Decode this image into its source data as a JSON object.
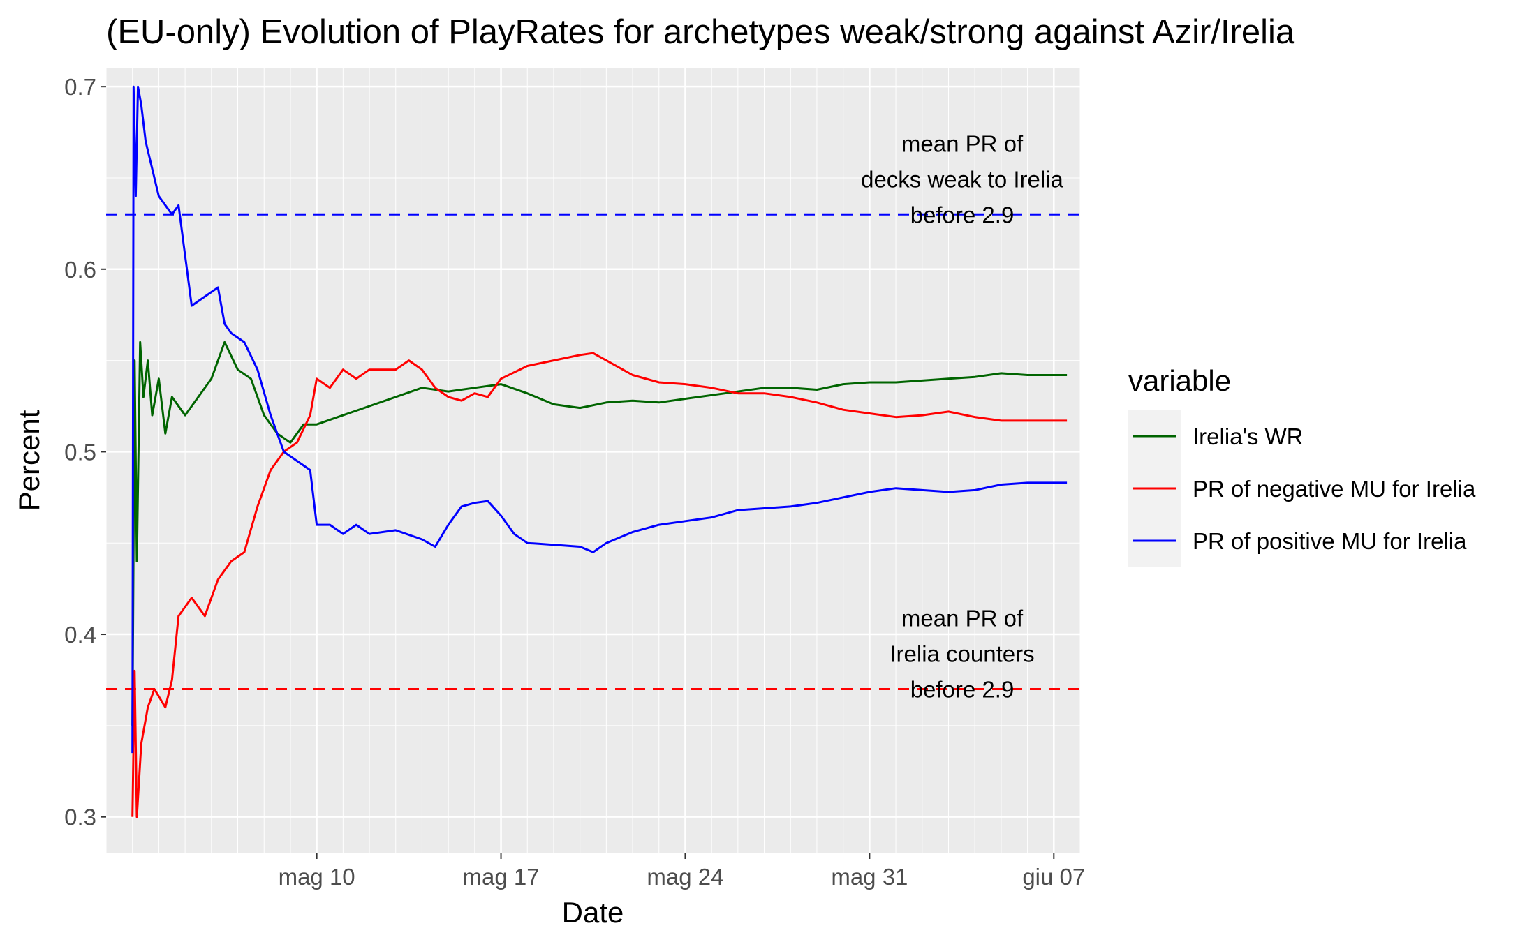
{
  "chart_data": {
    "type": "line",
    "title": "(EU-only) Evolution of PlayRates for archetypes weak/strong against Azir/Irelia",
    "xlabel": "Date",
    "ylabel": "Percent",
    "x_type": "date",
    "xlim": [
      "2021-05-02",
      "2021-06-08"
    ],
    "ylim": [
      0.28,
      0.71
    ],
    "x_ticks": [
      {
        "date": "2021-05-10",
        "label": "mag 10"
      },
      {
        "date": "2021-05-17",
        "label": "mag 17"
      },
      {
        "date": "2021-05-24",
        "label": "mag 24"
      },
      {
        "date": "2021-05-31",
        "label": "mag 31"
      },
      {
        "date": "2021-06-07",
        "label": "giu 07"
      }
    ],
    "y_ticks": [
      {
        "value": 0.3,
        "label": "0.3"
      },
      {
        "value": 0.4,
        "label": "0.4"
      },
      {
        "value": 0.5,
        "label": "0.5"
      },
      {
        "value": 0.6,
        "label": "0.6"
      },
      {
        "value": 0.7,
        "label": "0.7"
      }
    ],
    "grid": true,
    "background": "#ebebeb",
    "legend": {
      "title": "variable",
      "position": "right"
    },
    "series": [
      {
        "name": "Irelia's WR",
        "color": "#006400",
        "points": [
          [
            "2021-05-03T00:00",
            0.35
          ],
          [
            "2021-05-03T02:00",
            0.55
          ],
          [
            "2021-05-03T04:00",
            0.44
          ],
          [
            "2021-05-03T07:00",
            0.56
          ],
          [
            "2021-05-03T10:00",
            0.53
          ],
          [
            "2021-05-03T14:00",
            0.55
          ],
          [
            "2021-05-03T18:00",
            0.52
          ],
          [
            "2021-05-04T00:00",
            0.54
          ],
          [
            "2021-05-04T06:00",
            0.51
          ],
          [
            "2021-05-04T12:00",
            0.53
          ],
          [
            "2021-05-05T00:00",
            0.52
          ],
          [
            "2021-05-05T12:00",
            0.53
          ],
          [
            "2021-05-06T00:00",
            0.54
          ],
          [
            "2021-05-06T12:00",
            0.56
          ],
          [
            "2021-05-07T00:00",
            0.545
          ],
          [
            "2021-05-07T12:00",
            0.54
          ],
          [
            "2021-05-08T00:00",
            0.52
          ],
          [
            "2021-05-08T12:00",
            0.51
          ],
          [
            "2021-05-09T00:00",
            0.505
          ],
          [
            "2021-05-09T12:00",
            0.515
          ],
          [
            "2021-05-10T00:00",
            0.515
          ],
          [
            "2021-05-11T00:00",
            0.52
          ],
          [
            "2021-05-12T00:00",
            0.525
          ],
          [
            "2021-05-13T00:00",
            0.53
          ],
          [
            "2021-05-14T00:00",
            0.535
          ],
          [
            "2021-05-15T00:00",
            0.533
          ],
          [
            "2021-05-16T00:00",
            0.535
          ],
          [
            "2021-05-17T00:00",
            0.537
          ],
          [
            "2021-05-18T00:00",
            0.532
          ],
          [
            "2021-05-19T00:00",
            0.526
          ],
          [
            "2021-05-20T00:00",
            0.524
          ],
          [
            "2021-05-21T00:00",
            0.527
          ],
          [
            "2021-05-22T00:00",
            0.528
          ],
          [
            "2021-05-23T00:00",
            0.527
          ],
          [
            "2021-05-24T00:00",
            0.529
          ],
          [
            "2021-05-25T00:00",
            0.531
          ],
          [
            "2021-05-26T00:00",
            0.533
          ],
          [
            "2021-05-27T00:00",
            0.535
          ],
          [
            "2021-05-28T00:00",
            0.535
          ],
          [
            "2021-05-29T00:00",
            0.534
          ],
          [
            "2021-05-30T00:00",
            0.537
          ],
          [
            "2021-05-31T00:00",
            0.538
          ],
          [
            "2021-06-01T00:00",
            0.538
          ],
          [
            "2021-06-02T00:00",
            0.539
          ],
          [
            "2021-06-03T00:00",
            0.54
          ],
          [
            "2021-06-04T00:00",
            0.541
          ],
          [
            "2021-06-05T00:00",
            0.543
          ],
          [
            "2021-06-06T00:00",
            0.542
          ],
          [
            "2021-06-07T00:00",
            0.542
          ],
          [
            "2021-06-07T12:00",
            0.542
          ]
        ]
      },
      {
        "name": "PR of negative MU for Irelia",
        "color": "#ff0000",
        "points": [
          [
            "2021-05-03T00:00",
            0.3
          ],
          [
            "2021-05-03T02:00",
            0.38
          ],
          [
            "2021-05-03T04:00",
            0.3
          ],
          [
            "2021-05-03T08:00",
            0.34
          ],
          [
            "2021-05-03T14:00",
            0.36
          ],
          [
            "2021-05-03T20:00",
            0.37
          ],
          [
            "2021-05-04T06:00",
            0.36
          ],
          [
            "2021-05-04T12:00",
            0.375
          ],
          [
            "2021-05-04T18:00",
            0.41
          ],
          [
            "2021-05-05T06:00",
            0.42
          ],
          [
            "2021-05-05T18:00",
            0.41
          ],
          [
            "2021-05-06T06:00",
            0.43
          ],
          [
            "2021-05-06T18:00",
            0.44
          ],
          [
            "2021-05-07T06:00",
            0.445
          ],
          [
            "2021-05-07T18:00",
            0.47
          ],
          [
            "2021-05-08T06:00",
            0.49
          ],
          [
            "2021-05-08T18:00",
            0.5
          ],
          [
            "2021-05-09T06:00",
            0.505
          ],
          [
            "2021-05-09T18:00",
            0.52
          ],
          [
            "2021-05-10T00:00",
            0.54
          ],
          [
            "2021-05-10T12:00",
            0.535
          ],
          [
            "2021-05-11T00:00",
            0.545
          ],
          [
            "2021-05-11T12:00",
            0.54
          ],
          [
            "2021-05-12T00:00",
            0.545
          ],
          [
            "2021-05-13T00:00",
            0.545
          ],
          [
            "2021-05-13T12:00",
            0.55
          ],
          [
            "2021-05-14T00:00",
            0.545
          ],
          [
            "2021-05-14T12:00",
            0.535
          ],
          [
            "2021-05-15T00:00",
            0.53
          ],
          [
            "2021-05-15T12:00",
            0.528
          ],
          [
            "2021-05-16T00:00",
            0.532
          ],
          [
            "2021-05-16T12:00",
            0.53
          ],
          [
            "2021-05-17T00:00",
            0.54
          ],
          [
            "2021-05-18T00:00",
            0.547
          ],
          [
            "2021-05-19T00:00",
            0.55
          ],
          [
            "2021-05-20T00:00",
            0.553
          ],
          [
            "2021-05-20T12:00",
            0.554
          ],
          [
            "2021-05-21T00:00",
            0.55
          ],
          [
            "2021-05-22T00:00",
            0.542
          ],
          [
            "2021-05-23T00:00",
            0.538
          ],
          [
            "2021-05-24T00:00",
            0.537
          ],
          [
            "2021-05-25T00:00",
            0.535
          ],
          [
            "2021-05-26T00:00",
            0.532
          ],
          [
            "2021-05-27T00:00",
            0.532
          ],
          [
            "2021-05-28T00:00",
            0.53
          ],
          [
            "2021-05-29T00:00",
            0.527
          ],
          [
            "2021-05-30T00:00",
            0.523
          ],
          [
            "2021-05-31T00:00",
            0.521
          ],
          [
            "2021-06-01T00:00",
            0.519
          ],
          [
            "2021-06-02T00:00",
            0.52
          ],
          [
            "2021-06-03T00:00",
            0.522
          ],
          [
            "2021-06-04T00:00",
            0.519
          ],
          [
            "2021-06-05T00:00",
            0.517
          ],
          [
            "2021-06-06T00:00",
            0.517
          ],
          [
            "2021-06-07T00:00",
            0.517
          ],
          [
            "2021-06-07T12:00",
            0.517
          ]
        ]
      },
      {
        "name": "PR of positive MU for Irelia",
        "color": "#0000ff",
        "points": [
          [
            "2021-05-03T00:00",
            0.335
          ],
          [
            "2021-05-03T01:00",
            0.7
          ],
          [
            "2021-05-03T03:00",
            0.64
          ],
          [
            "2021-05-03T05:00",
            0.7
          ],
          [
            "2021-05-03T08:00",
            0.69
          ],
          [
            "2021-05-03T12:00",
            0.67
          ],
          [
            "2021-05-03T18:00",
            0.655
          ],
          [
            "2021-05-04T00:00",
            0.64
          ],
          [
            "2021-05-04T12:00",
            0.63
          ],
          [
            "2021-05-04T18:00",
            0.635
          ],
          [
            "2021-05-05T06:00",
            0.58
          ],
          [
            "2021-05-05T18:00",
            0.585
          ],
          [
            "2021-05-06T06:00",
            0.59
          ],
          [
            "2021-05-06T12:00",
            0.57
          ],
          [
            "2021-05-06T18:00",
            0.565
          ],
          [
            "2021-05-07T06:00",
            0.56
          ],
          [
            "2021-05-07T18:00",
            0.545
          ],
          [
            "2021-05-08T06:00",
            0.52
          ],
          [
            "2021-05-08T18:00",
            0.5
          ],
          [
            "2021-05-09T06:00",
            0.495
          ],
          [
            "2021-05-09T18:00",
            0.49
          ],
          [
            "2021-05-10T00:00",
            0.46
          ],
          [
            "2021-05-10T12:00",
            0.46
          ],
          [
            "2021-05-11T00:00",
            0.455
          ],
          [
            "2021-05-11T12:00",
            0.46
          ],
          [
            "2021-05-12T00:00",
            0.455
          ],
          [
            "2021-05-13T00:00",
            0.457
          ],
          [
            "2021-05-14T00:00",
            0.452
          ],
          [
            "2021-05-14T12:00",
            0.448
          ],
          [
            "2021-05-15T00:00",
            0.46
          ],
          [
            "2021-05-15T12:00",
            0.47
          ],
          [
            "2021-05-16T00:00",
            0.472
          ],
          [
            "2021-05-16T12:00",
            0.473
          ],
          [
            "2021-05-17T00:00",
            0.465
          ],
          [
            "2021-05-17T12:00",
            0.455
          ],
          [
            "2021-05-18T00:00",
            0.45
          ],
          [
            "2021-05-19T00:00",
            0.449
          ],
          [
            "2021-05-20T00:00",
            0.448
          ],
          [
            "2021-05-20T12:00",
            0.445
          ],
          [
            "2021-05-21T00:00",
            0.45
          ],
          [
            "2021-05-22T00:00",
            0.456
          ],
          [
            "2021-05-23T00:00",
            0.46
          ],
          [
            "2021-05-24T00:00",
            0.462
          ],
          [
            "2021-05-25T00:00",
            0.464
          ],
          [
            "2021-05-26T00:00",
            0.468
          ],
          [
            "2021-05-27T00:00",
            0.469
          ],
          [
            "2021-05-28T00:00",
            0.47
          ],
          [
            "2021-05-29T00:00",
            0.472
          ],
          [
            "2021-05-30T00:00",
            0.475
          ],
          [
            "2021-05-31T00:00",
            0.478
          ],
          [
            "2021-06-01T00:00",
            0.48
          ],
          [
            "2021-06-02T00:00",
            0.479
          ],
          [
            "2021-06-03T00:00",
            0.478
          ],
          [
            "2021-06-04T00:00",
            0.479
          ],
          [
            "2021-06-05T00:00",
            0.482
          ],
          [
            "2021-06-06T00:00",
            0.483
          ],
          [
            "2021-06-07T00:00",
            0.483
          ],
          [
            "2021-06-07T12:00",
            0.483
          ]
        ]
      }
    ],
    "reference_lines": [
      {
        "value": 0.63,
        "color": "#0000ff",
        "style": "dashed",
        "label_lines": [
          "mean PR of",
          "decks weak to Irelia",
          "before 2.9"
        ]
      },
      {
        "value": 0.37,
        "color": "#ff0000",
        "style": "dashed",
        "label_lines": [
          "mean PR of",
          "Irelia counters",
          "before 2.9"
        ]
      }
    ]
  }
}
